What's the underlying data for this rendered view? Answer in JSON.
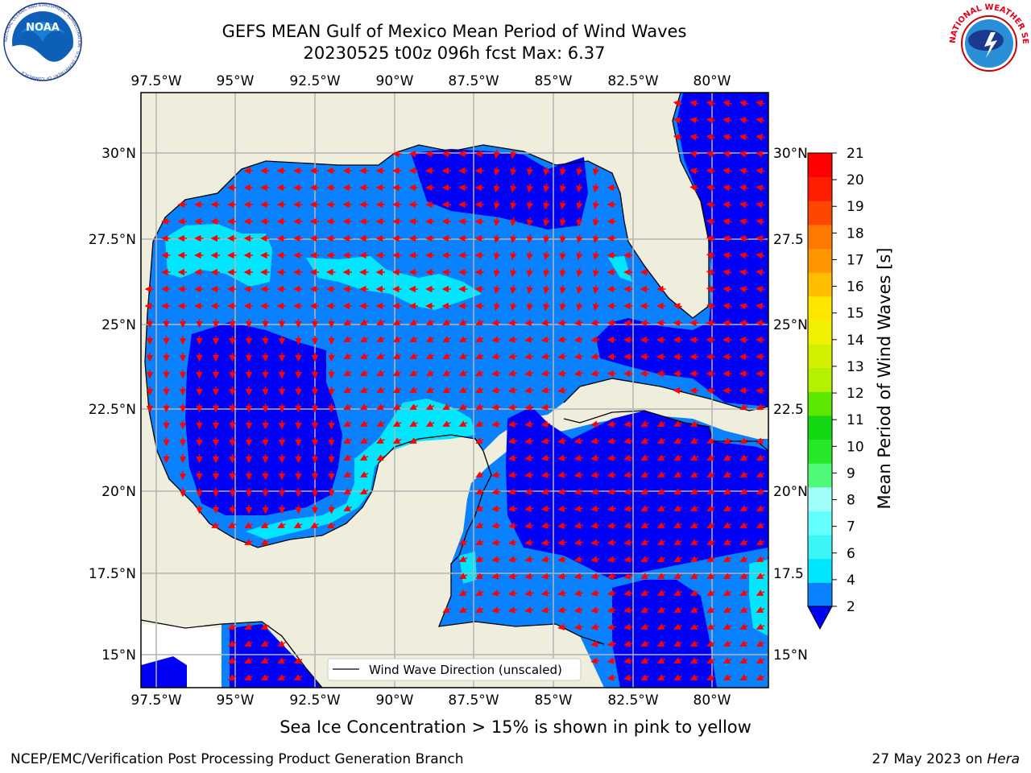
{
  "title": {
    "line1": "GEFS MEAN Gulf of Mexico Mean Period of Wind Waves",
    "line2": "20230525 t00z 096h fcst   Max: 6.37"
  },
  "map": {
    "lon_ticks": [
      "97.5°W",
      "95°W",
      "92.5°W",
      "90°W",
      "87.5°W",
      "85°W",
      "82.5°W",
      "80°W"
    ],
    "lat_ticks_left": [
      "30°N",
      "27.5°N",
      "25°N",
      "22.5°N",
      "20°N",
      "17.5°N",
      "15°N"
    ],
    "lat_ticks_right": [
      "30°N",
      "27.5",
      "25°N",
      "22.5",
      "20°N",
      "17.5",
      "15°N"
    ],
    "legend_label": "Wind Wave Direction (unscaled)",
    "colors": {
      "land": "#efeedc",
      "level_0_2": "#0000f5",
      "level_2_4": "#0a82ff",
      "level_4_6": "#00e6ff",
      "level_6_8": "#3cf5f5",
      "arrow": "#ff0000",
      "grid": "#b4b4b4"
    }
  },
  "colorbar": {
    "label": "Mean Period of Wind Waves [s]",
    "ticks": [
      "2",
      "4",
      "6",
      "7",
      "8",
      "9",
      "10",
      "11",
      "12",
      "13",
      "14",
      "15",
      "16",
      "17",
      "18",
      "19",
      "20",
      "21"
    ],
    "colors": [
      "#0a82ff",
      "#00e6ff",
      "#3cf5f5",
      "#64ffff",
      "#a0fff8",
      "#50fa78",
      "#28e628",
      "#14d714",
      "#5ce600",
      "#b4f000",
      "#d2f000",
      "#f0f000",
      "#ffe600",
      "#ffbe00",
      "#ff9600",
      "#ff7800",
      "#ff4600",
      "#ff1e00",
      "#ff0000"
    ]
  },
  "ice_note": "Sea Ice Concentration > 15% is shown in pink to yellow",
  "footer": {
    "left": "NCEP/EMC/Verification Post Processing Product Generation Branch",
    "right_prefix": "27 May 2023 on ",
    "right_host": "Hera"
  },
  "logos": {
    "left": "NOAA",
    "left_ring": "NATIONAL OCEANIC AND ATMOSPHERIC ADMINISTRATION · U.S. DEPARTMENT OF COMMERCE",
    "right_ring": "NATIONAL WEATHER SERVICE"
  }
}
